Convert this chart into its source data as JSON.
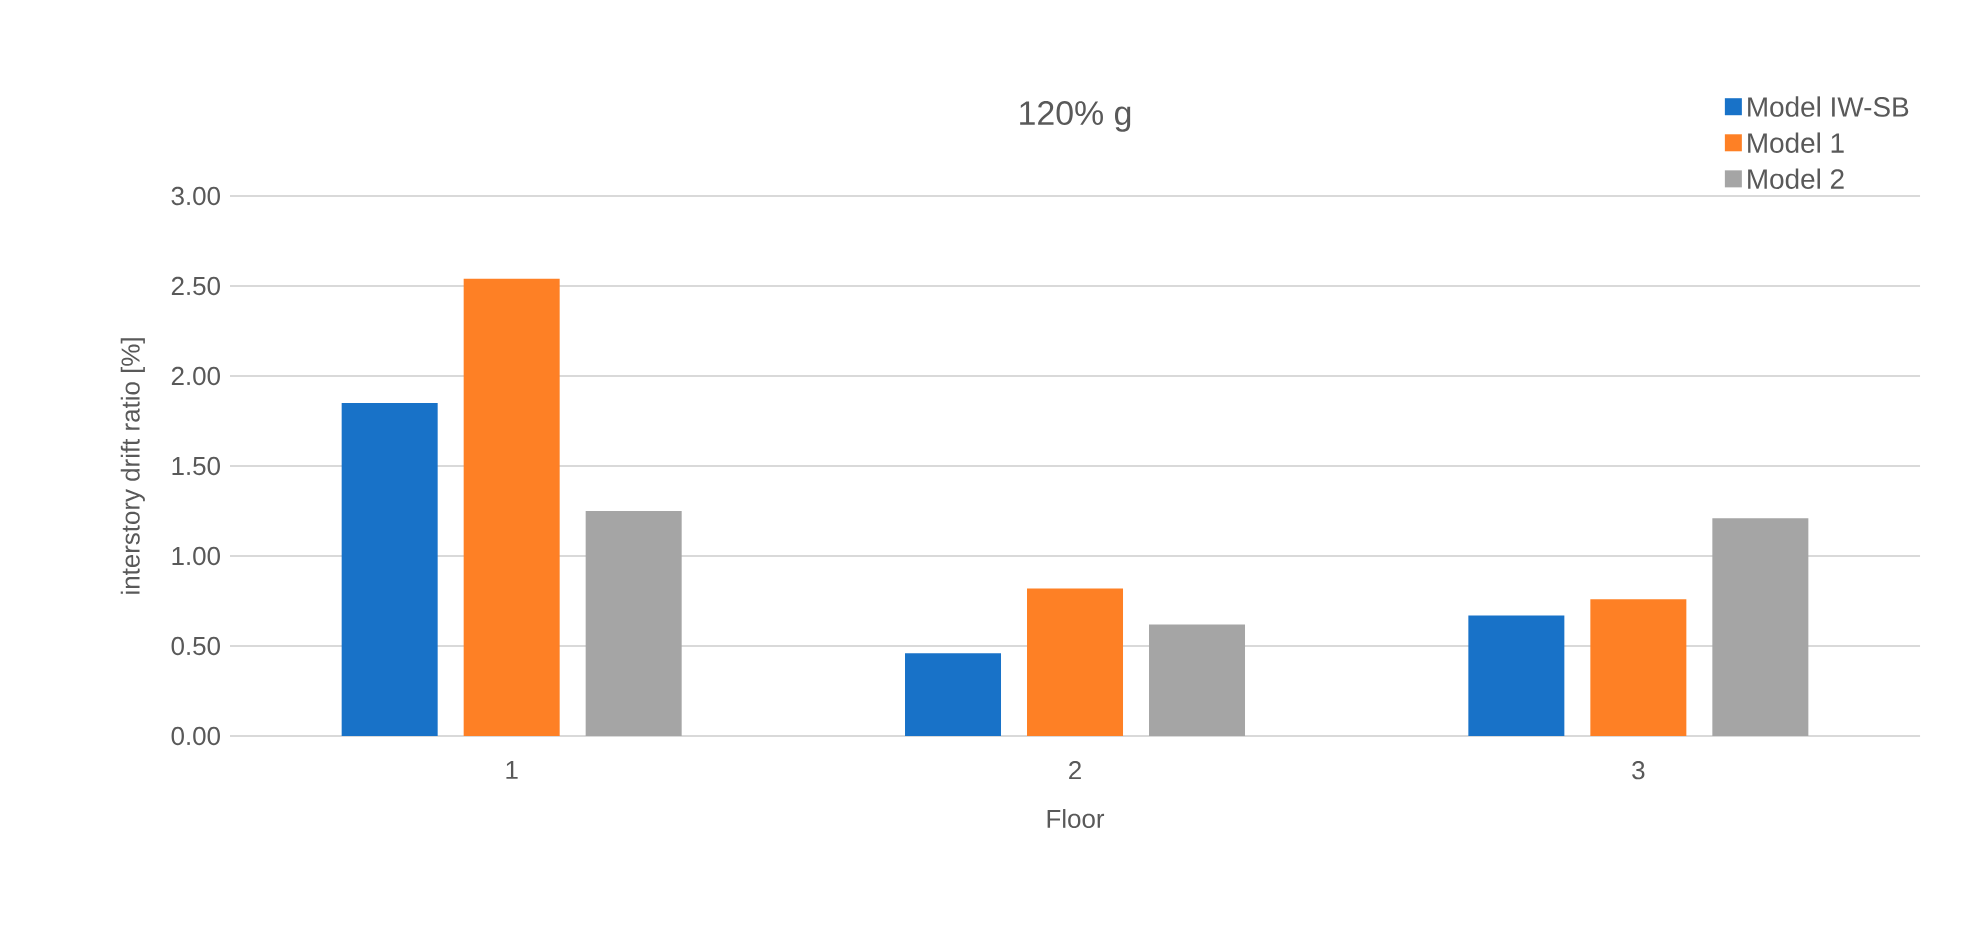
{
  "chart_data": {
    "type": "bar",
    "title": "120% g",
    "xlabel": "Floor",
    "ylabel": "interstory drift ratio [%]",
    "categories": [
      "1",
      "2",
      "3"
    ],
    "series": [
      {
        "name": "Model IW-SB",
        "color": "#1872c8",
        "values": [
          1.85,
          0.46,
          0.67
        ]
      },
      {
        "name": "Model 1",
        "color": "#fe8025",
        "values": [
          2.54,
          0.82,
          0.76
        ]
      },
      {
        "name": "Model 2",
        "color": "#a5a5a5",
        "values": [
          1.25,
          0.62,
          1.21
        ]
      }
    ],
    "ylim": [
      0,
      3
    ],
    "yticks": [
      {
        "value": 0,
        "label": "0.00"
      },
      {
        "value": 0.5,
        "label": "0.50"
      },
      {
        "value": 1,
        "label": "1.00"
      },
      {
        "value": 1.5,
        "label": "1.50"
      },
      {
        "value": 2,
        "label": "2.00"
      },
      {
        "value": 2.5,
        "label": "2.50"
      },
      {
        "value": 3,
        "label": "3.00"
      }
    ],
    "grid": "y",
    "legend": "top right"
  }
}
